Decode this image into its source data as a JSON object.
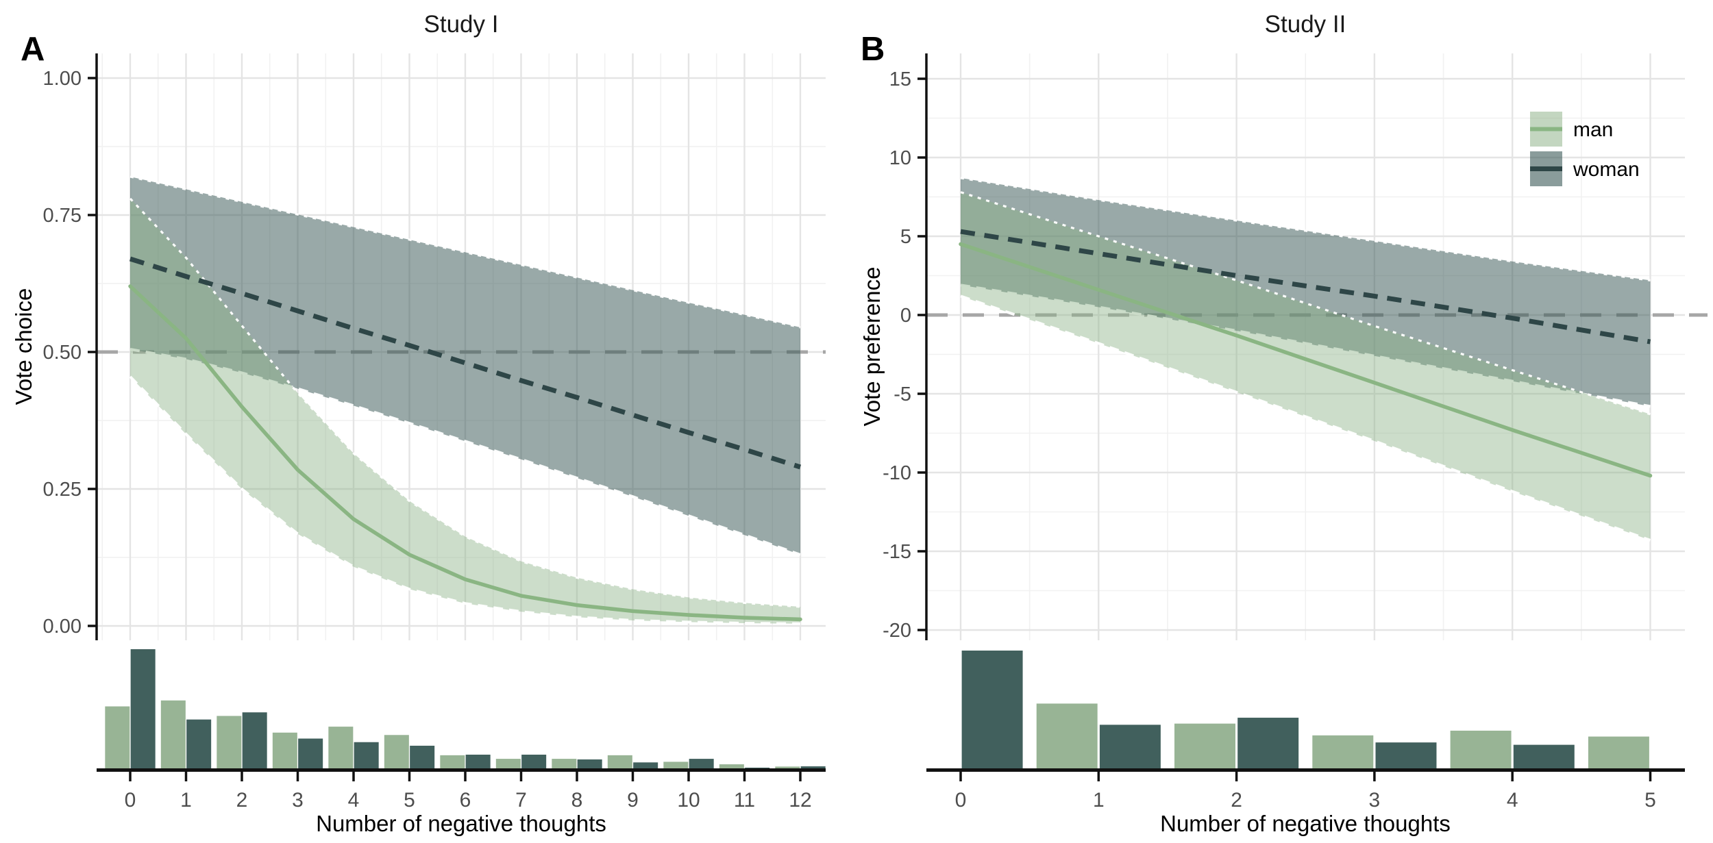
{
  "figure": {
    "background": "#ffffff",
    "panels": [
      {
        "letter": "A",
        "title": "Study I",
        "xlabel": "Number of negative thoughts",
        "ylabel": "Vote choice"
      },
      {
        "letter": "B",
        "title": "Study II",
        "xlabel": "Number of negative thoughts",
        "ylabel": "Vote preference"
      }
    ],
    "legend": {
      "items": [
        {
          "label": "man"
        },
        {
          "label": "woman"
        }
      ]
    },
    "colors": {
      "man_line": "#8ab583",
      "man_fill": "#8cb187",
      "man_fill_opacity": 0.44,
      "woman_line": "#2e4647",
      "woman_fill": "#3c5a58",
      "woman_fill_opacity": 0.52,
      "reference_line": "#a6a6a6",
      "grid_major": "#e4e4e4",
      "grid_minor": "#f1f1f1",
      "axis": "#111111",
      "tick_label": "#4d4d4d",
      "hist_man": "#98b495",
      "hist_woman": "#41605d",
      "ribbon_edge": "#ffffff"
    }
  },
  "chart_data": [
    {
      "type": "line",
      "panel": "A",
      "title": "Study I",
      "xlabel": "Number of negative thoughts",
      "ylabel": "Vote choice",
      "xlim": [
        -0.6,
        12.3
      ],
      "ylim": [
        -0.03,
        1.04
      ],
      "x_ticks": [
        0,
        1,
        2,
        3,
        4,
        5,
        6,
        7,
        8,
        9,
        10,
        11,
        12
      ],
      "x_tick_labels": [
        "0",
        "1",
        "2",
        "3",
        "4",
        "5",
        "6",
        "7",
        "8",
        "9",
        "10",
        "11",
        "12"
      ],
      "y_ticks": [
        0,
        0.25,
        0.5,
        0.75,
        1.0
      ],
      "y_tick_labels": [
        "0.00",
        "0.25",
        "0.50",
        "0.75",
        "1.00"
      ],
      "reference_line_y": 0.5,
      "grid": true,
      "legend_position": "none",
      "x": [
        0,
        1,
        2,
        3,
        4,
        5,
        6,
        7,
        8,
        9,
        10,
        11,
        12
      ],
      "series": [
        {
          "name": "man",
          "role": "fit",
          "style": "solid green line",
          "values": [
            0.62,
            0.525,
            0.4,
            0.285,
            0.195,
            0.13,
            0.085,
            0.055,
            0.038,
            0.027,
            0.02,
            0.015,
            0.012
          ]
        },
        {
          "name": "man",
          "role": "ci_upper",
          "style": "ribbon edge",
          "values": [
            0.78,
            0.672,
            0.548,
            0.425,
            0.315,
            0.228,
            0.163,
            0.118,
            0.088,
            0.067,
            0.052,
            0.042,
            0.035
          ]
        },
        {
          "name": "man",
          "role": "ci_lower",
          "style": "ribbon edge",
          "values": [
            0.455,
            0.35,
            0.25,
            0.168,
            0.108,
            0.067,
            0.041,
            0.026,
            0.016,
            0.01,
            0.007,
            0.005,
            0.004
          ]
        },
        {
          "name": "woman",
          "role": "fit",
          "style": "dashed dark line",
          "values": [
            0.67,
            0.638,
            0.607,
            0.575,
            0.543,
            0.512,
            0.48,
            0.448,
            0.417,
            0.385,
            0.353,
            0.322,
            0.29
          ]
        },
        {
          "name": "woman",
          "role": "ci_upper",
          "style": "ribbon edge",
          "values": [
            0.82,
            0.797,
            0.774,
            0.751,
            0.728,
            0.705,
            0.682,
            0.659,
            0.636,
            0.613,
            0.59,
            0.568,
            0.545
          ]
        },
        {
          "name": "woman",
          "role": "ci_lower",
          "style": "ribbon edge",
          "values": [
            0.505,
            0.487,
            0.462,
            0.433,
            0.402,
            0.37,
            0.337,
            0.304,
            0.27,
            0.236,
            0.201,
            0.166,
            0.13
          ]
        }
      ],
      "histogram": {
        "note": "marginal histogram, relative heights (tallest bar = 1)",
        "x": [
          0,
          1,
          2,
          3,
          4,
          5,
          6,
          7,
          8,
          9,
          10,
          11,
          12
        ],
        "man": [
          0.52,
          0.57,
          0.44,
          0.3,
          0.35,
          0.28,
          0.11,
          0.08,
          0.08,
          0.11,
          0.055,
          0.034,
          0.015
        ],
        "woman": [
          1.0,
          0.41,
          0.47,
          0.25,
          0.22,
          0.19,
          0.115,
          0.115,
          0.075,
          0.05,
          0.08,
          0.006,
          0.017
        ]
      }
    },
    {
      "type": "line",
      "panel": "B",
      "title": "Study II",
      "xlabel": "Number of negative thoughts",
      "ylabel": "Vote preference",
      "xlim": [
        -0.25,
        5.25
      ],
      "ylim": [
        -20.65,
        16.6
      ],
      "x_ticks": [
        0,
        1,
        2,
        3,
        4,
        5
      ],
      "x_tick_labels": [
        "0",
        "1",
        "2",
        "3",
        "4",
        "5"
      ],
      "y_ticks": [
        -20,
        -15,
        -10,
        -5,
        0,
        5,
        10,
        15
      ],
      "y_tick_labels": [
        "-20",
        "-15",
        "-10",
        "-5",
        "0",
        "5",
        "10",
        "15"
      ],
      "reference_line_y": 0,
      "grid": true,
      "legend_position": "top-right",
      "x": [
        0,
        1,
        2,
        3,
        4,
        5
      ],
      "series": [
        {
          "name": "man",
          "role": "fit",
          "style": "solid green line",
          "values": [
            4.5,
            1.6,
            -1.3,
            -4.3,
            -7.3,
            -10.2
          ]
        },
        {
          "name": "man",
          "role": "ci_upper",
          "style": "ribbon edge",
          "values": [
            7.8,
            5.0,
            2.2,
            -0.7,
            -3.5,
            -6.3
          ]
        },
        {
          "name": "man",
          "role": "ci_lower",
          "style": "ribbon edge",
          "values": [
            1.2,
            -1.8,
            -4.9,
            -8.0,
            -11.2,
            -14.3
          ]
        },
        {
          "name": "woman",
          "role": "fit",
          "style": "dashed dark line",
          "values": [
            5.3,
            3.9,
            2.5,
            1.2,
            -0.2,
            -1.7
          ]
        },
        {
          "name": "woman",
          "role": "ci_upper",
          "style": "ribbon edge",
          "values": [
            8.7,
            7.3,
            6.0,
            4.7,
            3.4,
            2.2
          ]
        },
        {
          "name": "woman",
          "role": "ci_lower",
          "style": "ribbon edge",
          "values": [
            1.9,
            0.5,
            -1.0,
            -2.6,
            -4.2,
            -5.8
          ]
        }
      ],
      "histogram": {
        "note": "marginal histogram, relative heights (tallest bar = 1)",
        "x": [
          0,
          1,
          2,
          3,
          4,
          5
        ],
        "man": [
          0,
          0.55,
          0.38,
          0.28,
          0.32,
          0.27
        ],
        "woman": [
          1.0,
          0.37,
          0.43,
          0.22,
          0.2,
          0
        ]
      }
    }
  ]
}
